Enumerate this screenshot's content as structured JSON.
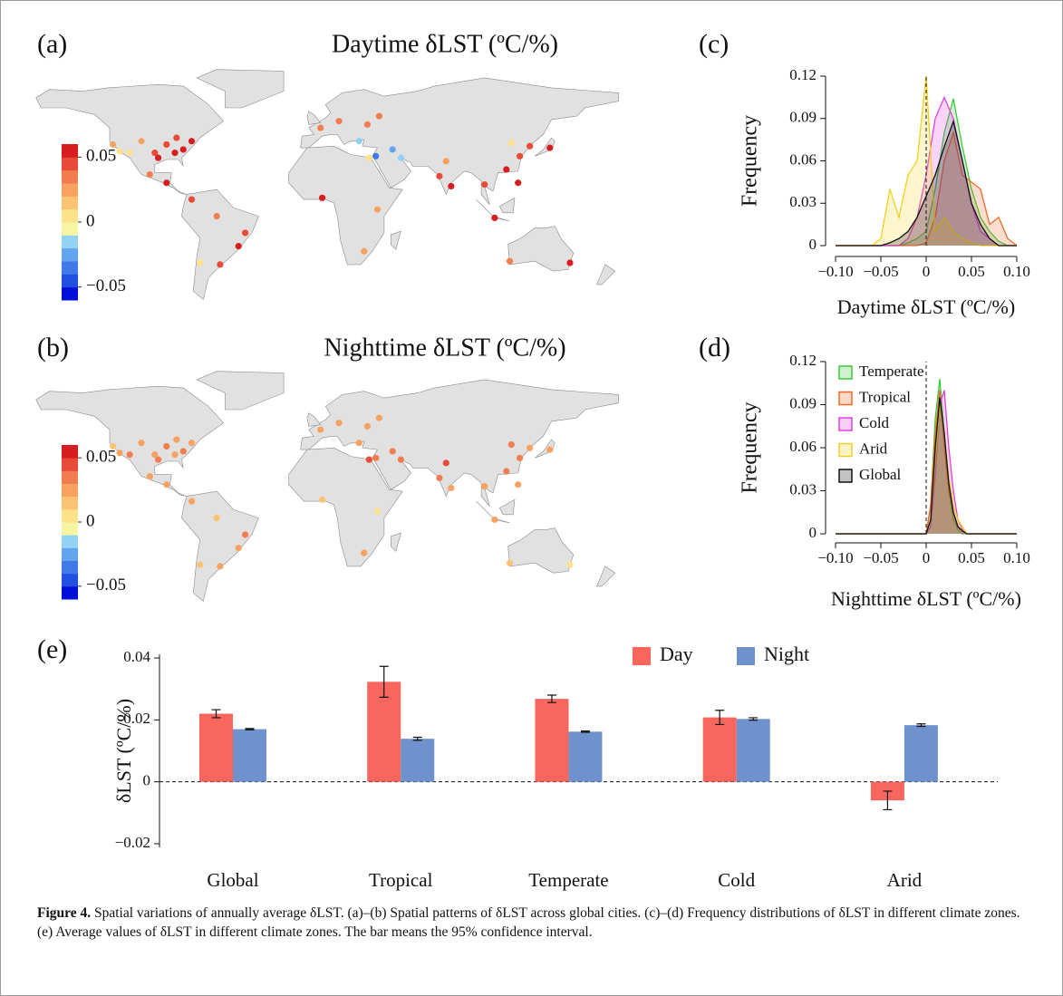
{
  "figure": {
    "caption_label": "Figure 4.",
    "caption": "Spatial variations of annually average δLST. (a)–(b) Spatial patterns of δLST across global cities. (c)–(d) Frequency distributions of δLST in different climate zones. (e) Average values of δLST in different climate zones. The bar means the 95% confidence interval."
  },
  "chart_data": [
    {
      "type": "map",
      "panel": "(a)",
      "title": "Daytime δLST (ºC/%)",
      "clim": [
        -0.06,
        0.06
      ],
      "colors": [
        "#0010d8",
        "#2250e0",
        "#3f7ae8",
        "#62a4ee",
        "#92d2f4",
        "#f6f6a2",
        "#fde28c",
        "#fbc474",
        "#f8a262",
        "#f27e50",
        "#e84c38",
        "#d61e1e"
      ],
      "cticks": [
        {
          "value": 0.05,
          "label": "0.05"
        },
        0,
        {
          "value": -0.05,
          "label": "−0.05"
        }
      ],
      "lon": [
        -75,
        -80,
        -85,
        -90,
        -95,
        -84,
        -97,
        -118,
        -122,
        -112,
        -105,
        -100,
        -90,
        -75,
        -47,
        -58,
        -43,
        -70,
        2,
        13,
        30,
        37,
        25,
        35,
        45,
        31,
        50,
        77,
        73,
        80,
        116,
        121,
        113,
        127,
        139,
        106,
        120,
        3,
        28,
        151,
        115,
        100,
        -60,
        36
      ],
      "lat": [
        40,
        35,
        33,
        38,
        30,
        42,
        33,
        34,
        38,
        33,
        40,
        20,
        15,
        5,
        -23,
        -34,
        -15,
        -33,
        48,
        52,
        50,
        55,
        40,
        31,
        35,
        30,
        30,
        28,
        19,
        13,
        39,
        31,
        23,
        37,
        36,
        -6,
        15,
        6,
        -26,
        -33,
        -32,
        14,
        -5,
        -1
      ],
      "values": [
        0.055,
        0.05,
        0.05,
        0.045,
        0.05,
        0.04,
        0.04,
        0.01,
        0.02,
        0,
        0.02,
        0.03,
        0.05,
        0.04,
        0.05,
        0.04,
        0.045,
        0,
        0.03,
        0.03,
        0.035,
        0.03,
        -0.02,
        -0.04,
        -0.03,
        0,
        -0.02,
        0.02,
        0.045,
        0.05,
        0.01,
        0.045,
        0.05,
        0.04,
        0.05,
        0.055,
        0.05,
        0.05,
        0.02,
        0.05,
        0.03,
        0.04,
        0.03,
        0.02
      ]
    },
    {
      "type": "map",
      "panel": "(b)",
      "title": "Nighttime δLST (ºC/%)",
      "clim": [
        -0.06,
        0.06
      ],
      "colors": [
        "#0010d8",
        "#2250e0",
        "#3f7ae8",
        "#62a4ee",
        "#92d2f4",
        "#f6f6a2",
        "#fde28c",
        "#fbc474",
        "#f8a262",
        "#f27e50",
        "#e84c38",
        "#d61e1e"
      ],
      "cticks": [
        {
          "value": 0.05,
          "label": "0.05"
        },
        0,
        {
          "value": -0.05,
          "label": "−0.05"
        }
      ],
      "lon": [
        -75,
        -80,
        -85,
        -90,
        -95,
        -84,
        -97,
        -118,
        -122,
        -112,
        -105,
        -100,
        -90,
        -75,
        -47,
        -58,
        -43,
        -70,
        2,
        13,
        30,
        37,
        25,
        35,
        45,
        31,
        50,
        77,
        73,
        80,
        116,
        121,
        113,
        127,
        139,
        106,
        120,
        3,
        28,
        151,
        115,
        100,
        -60,
        36
      ],
      "lat": [
        40,
        35,
        33,
        38,
        30,
        42,
        33,
        34,
        38,
        33,
        40,
        20,
        15,
        5,
        -23,
        -34,
        -15,
        -33,
        48,
        52,
        50,
        55,
        40,
        31,
        35,
        30,
        30,
        28,
        19,
        13,
        39,
        31,
        23,
        37,
        36,
        -6,
        15,
        6,
        -26,
        -33,
        -32,
        14,
        -5,
        -1
      ],
      "values": [
        0.025,
        0.03,
        0.025,
        0.03,
        0.035,
        0.02,
        0.025,
        0.02,
        0.015,
        0.03,
        0.025,
        0.02,
        0.025,
        0.02,
        0.02,
        0.025,
        0.03,
        0.015,
        0.02,
        0.025,
        0.02,
        0.02,
        0.025,
        0.03,
        0.035,
        0.04,
        0.035,
        0.04,
        0.035,
        0.025,
        0.035,
        0.03,
        0.03,
        0.025,
        0.02,
        0.02,
        0.025,
        0.015,
        0.02,
        0.01,
        0.015,
        0.02,
        0.015,
        0.005
      ]
    },
    {
      "type": "density",
      "panel": "(c)",
      "xlabel": "Daytime δLST (ºC/%)",
      "ylabel": "Frequency",
      "xlim": [
        -0.1,
        0.1
      ],
      "ylim": [
        0,
        0.12
      ],
      "xticks": [
        {
          "value": -0.1,
          "label": "−0.10"
        },
        {
          "value": -0.05,
          "label": "−0.05"
        },
        0,
        0.05,
        {
          "value": 0.1,
          "label": "0.10"
        }
      ],
      "yticks": [
        0,
        0.03,
        0.06,
        0.09,
        0.12
      ],
      "x": [
        -0.1,
        -0.06,
        -0.05,
        -0.04,
        -0.03,
        -0.02,
        -0.01,
        0,
        0.01,
        0.02,
        0.03,
        0.04,
        0.05,
        0.06,
        0.07,
        0.08,
        0.09,
        0.1
      ],
      "series": [
        {
          "color": "#3cc83c",
          "values": [
            0,
            0,
            0,
            0,
            0,
            0.002,
            0.005,
            0.01,
            0.04,
            0.08,
            0.104,
            0.07,
            0.04,
            0.02,
            0.01,
            0.003,
            0,
            0
          ]
        },
        {
          "color": "#f06a2a",
          "values": [
            0,
            0,
            0,
            0,
            0,
            0,
            0,
            0.002,
            0.02,
            0.06,
            0.08,
            0.05,
            0.045,
            0.04,
            0.015,
            0.02,
            0.005,
            0
          ]
        },
        {
          "color": "#e040e0",
          "values": [
            0,
            0,
            0,
            0,
            0,
            0.005,
            0.02,
            0.05,
            0.09,
            0.105,
            0.09,
            0.06,
            0.03,
            0.01,
            0.005,
            0,
            0,
            0
          ]
        },
        {
          "color": "#f0d020",
          "values": [
            0,
            0,
            0.005,
            0.04,
            0.02,
            0.05,
            0.06,
            0.12,
            0.01,
            0.02,
            0.01,
            0.005,
            0.002,
            0,
            0,
            0,
            0,
            0
          ]
        },
        {
          "color": "#111111",
          "values": [
            0,
            0,
            0,
            0.002,
            0.005,
            0.01,
            0.02,
            0.035,
            0.05,
            0.07,
            0.088,
            0.06,
            0.03,
            0.015,
            0.005,
            0,
            0,
            0
          ]
        }
      ]
    },
    {
      "type": "density",
      "panel": "(d)",
      "xlabel": "Nighttime δLST (ºC/%)",
      "ylabel": "Frequency",
      "legend": "upper left",
      "xlim": [
        -0.1,
        0.1
      ],
      "ylim": [
        0,
        0.12
      ],
      "xticks": [
        {
          "value": -0.1,
          "label": "−0.10"
        },
        {
          "value": -0.05,
          "label": "−0.05"
        },
        0,
        0.05,
        {
          "value": 0.1,
          "label": "0.10"
        }
      ],
      "yticks": [
        0,
        0.03,
        0.06,
        0.09,
        0.12
      ],
      "x": [
        -0.1,
        0,
        0.005,
        0.01,
        0.015,
        0.02,
        0.025,
        0.03,
        0.035,
        0.04,
        0.045,
        0.1
      ],
      "series": [
        {
          "name": "Temperate",
          "color": "#3cc83c",
          "values": [
            0,
            0,
            0.02,
            0.08,
            0.108,
            0.07,
            0.03,
            0.01,
            0.003,
            0,
            0,
            0
          ]
        },
        {
          "name": "Tropical",
          "color": "#f06a2a",
          "values": [
            0,
            0,
            0.02,
            0.07,
            0.1,
            0.06,
            0.03,
            0.015,
            0.005,
            0.002,
            0,
            0
          ]
        },
        {
          "name": "Cold",
          "color": "#e040e0",
          "values": [
            0,
            0,
            0.005,
            0.04,
            0.09,
            0.1,
            0.06,
            0.03,
            0.01,
            0.003,
            0,
            0
          ]
        },
        {
          "name": "Arid",
          "color": "#f0d020",
          "values": [
            0,
            0,
            0.01,
            0.05,
            0.09,
            0.07,
            0.04,
            0.02,
            0.01,
            0.005,
            0,
            0
          ]
        },
        {
          "name": "Global",
          "color": "#111111",
          "values": [
            0,
            0,
            0.01,
            0.06,
            0.095,
            0.07,
            0.035,
            0.015,
            0.005,
            0.002,
            0,
            0
          ]
        }
      ]
    },
    {
      "type": "bar",
      "panel": "(e)",
      "ylabel": "δLST (ºC/%)",
      "legend": "upper right",
      "categories": [
        "Global",
        "Tropical",
        "Temperate",
        "Cold",
        "Arid"
      ],
      "ylim": [
        -0.02,
        0.04
      ],
      "yticks": [
        {
          "value": -0.02,
          "label": "−0.02"
        },
        0,
        0.02,
        0.04
      ],
      "series": [
        {
          "name": "Day",
          "color": "#f8665e",
          "values": [
            0.022,
            0.0323,
            0.0268,
            0.0208,
            -0.006
          ],
          "errors": [
            0.0013,
            0.005,
            0.0012,
            0.0023,
            0.003
          ]
        },
        {
          "name": "Night",
          "color": "#7092cc",
          "values": [
            0.017,
            0.0139,
            0.0162,
            0.0203,
            0.0183
          ],
          "errors": [
            0.0002,
            0.0005,
            0.0002,
            0.0004,
            0.0004
          ]
        }
      ]
    }
  ]
}
